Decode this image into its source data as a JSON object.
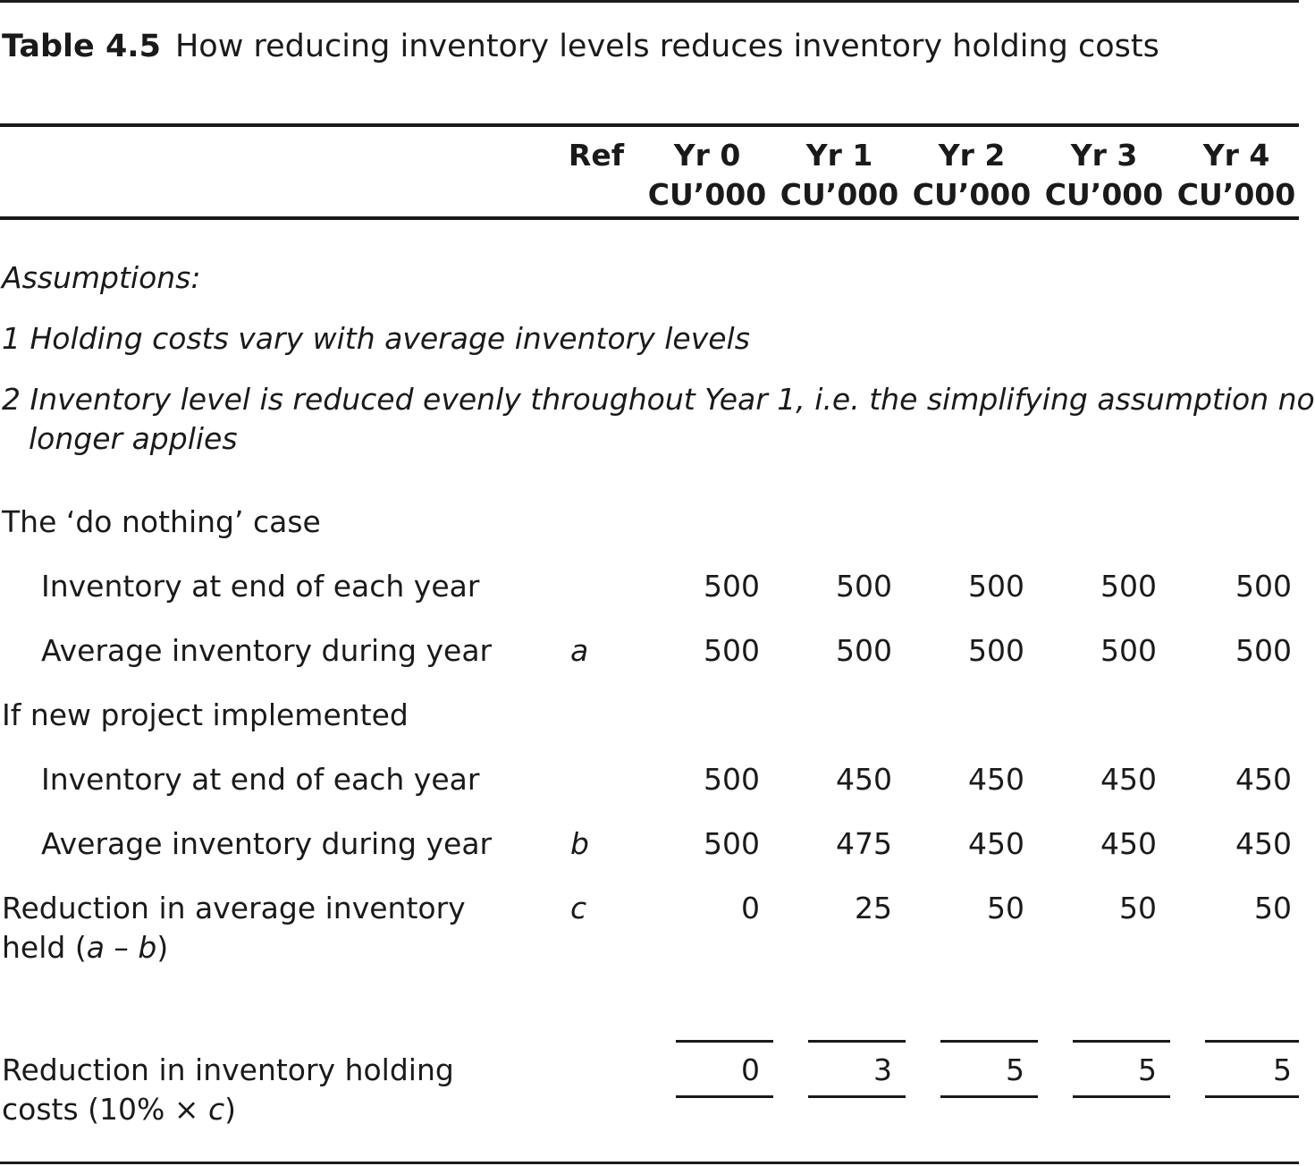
{
  "caption": {
    "number": "Table 4.5",
    "title": "How reducing inventory levels reduces inventory holding costs"
  },
  "header": {
    "ref": "Ref",
    "columns": [
      {
        "year": "Yr 0",
        "unit": "CU’000"
      },
      {
        "year": "Yr 1",
        "unit": "CU’000"
      },
      {
        "year": "Yr 2",
        "unit": "CU’000"
      },
      {
        "year": "Yr 3",
        "unit": "CU’000"
      },
      {
        "year": "Yr 4",
        "unit": "CU’000"
      }
    ]
  },
  "assumptions": {
    "heading": "Assumptions:",
    "item1": "1 Holding costs vary with average inventory levels",
    "item2_line1": "2 Inventory level is reduced evenly throughout Year 1, i.e. the simplifying assumption no",
    "item2_line2": "longer applies"
  },
  "sections": {
    "do_nothing": "The ‘do nothing’ case",
    "new_project": "If new project implemented"
  },
  "rows": {
    "dn_end": {
      "label": "Inventory at end of each year",
      "ref": "",
      "values": [
        "500",
        "500",
        "500",
        "500",
        "500"
      ]
    },
    "dn_avg": {
      "label": "Average inventory during year",
      "ref": "a",
      "values": [
        "500",
        "500",
        "500",
        "500",
        "500"
      ]
    },
    "np_end": {
      "label": "Inventory at end of each year",
      "ref": "",
      "values": [
        "500",
        "450",
        "450",
        "450",
        "450"
      ]
    },
    "np_avg": {
      "label": "Average inventory during year",
      "ref": "b",
      "values": [
        "500",
        "475",
        "450",
        "450",
        "450"
      ]
    },
    "reduction": {
      "label_line1": "Reduction in average inventory",
      "label_line2_pre": "held (",
      "label_line2_a": "a",
      "label_line2_mid": " – ",
      "label_line2_b": "b",
      "label_line2_post": ")",
      "ref": "c",
      "values": [
        "0",
        "25",
        "50",
        "50",
        "50"
      ]
    },
    "holding": {
      "label_line1": "Reduction in inventory holding",
      "label_line2_pre": "costs (10% × ",
      "label_line2_c": "c",
      "label_line2_post": ")",
      "ref": "",
      "values": [
        "0",
        "3",
        "5",
        "5",
        "5"
      ]
    }
  }
}
